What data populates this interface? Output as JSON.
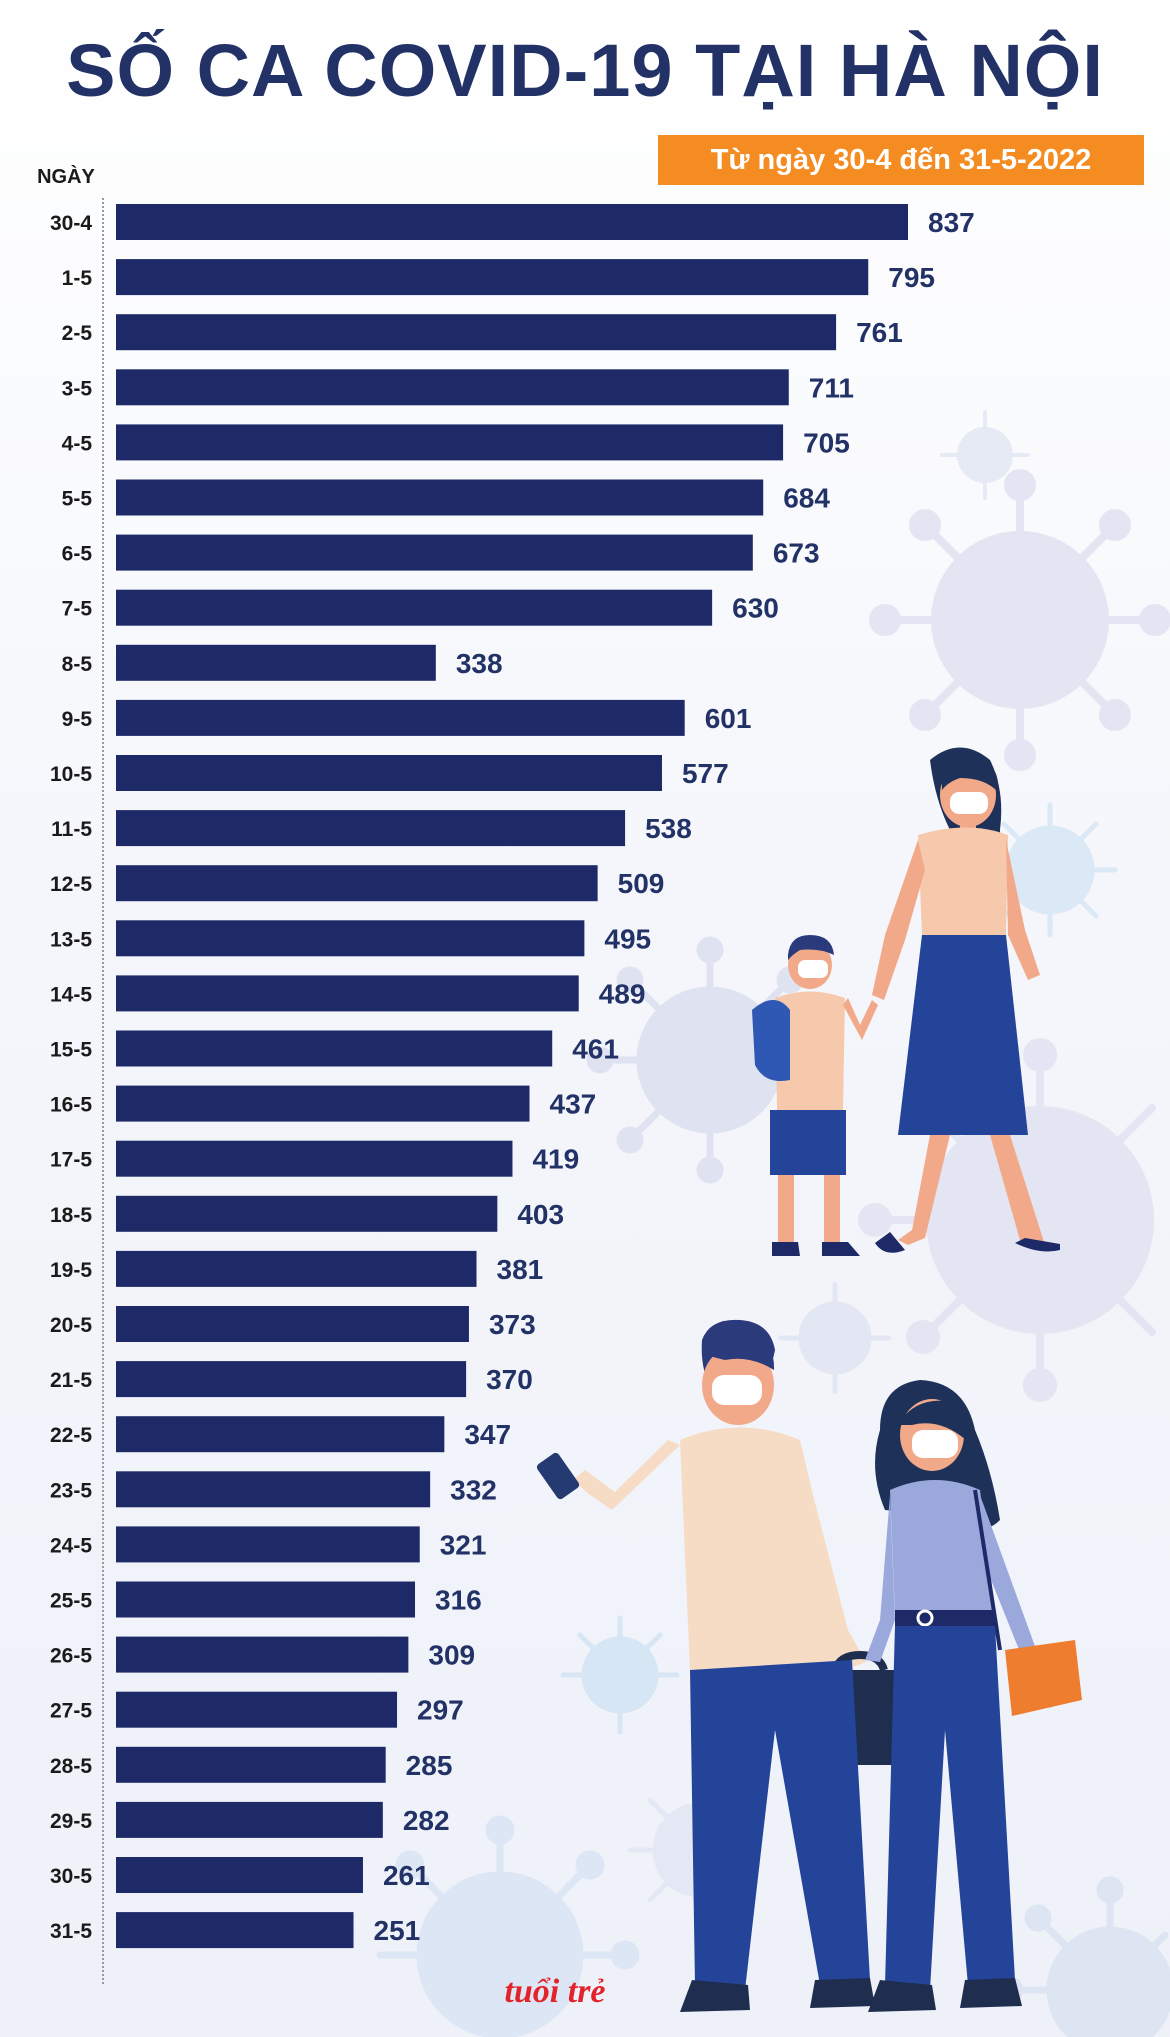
{
  "colors": {
    "title": "#233266",
    "bar": "#1e2a68",
    "value": "#233266",
    "label": "#1a1a1a",
    "subtitle_bg": "#f58c22",
    "brand": "#e3232b"
  },
  "header": {
    "title": "SỐ CA COVID-19 TẠI HÀ NỘI",
    "subtitle": "Từ ngày 30-4 đến 31-5-2022"
  },
  "brand": {
    "logo_text": "tuổi trẻ"
  },
  "chart_data": {
    "type": "bar",
    "orientation": "horizontal",
    "title": "SỐ CA COVID-19 TẠI HÀ NỘI",
    "subtitle": "Từ ngày 30-4 đến 31-5-2022",
    "ylabel": "NGÀY",
    "xlim": [
      0,
      837
    ],
    "grid": false,
    "data_labels": true,
    "categories": [
      "30-4",
      "1-5",
      "2-5",
      "3-5",
      "4-5",
      "5-5",
      "6-5",
      "7-5",
      "8-5",
      "9-5",
      "10-5",
      "11-5",
      "12-5",
      "13-5",
      "14-5",
      "15-5",
      "16-5",
      "17-5",
      "18-5",
      "19-5",
      "20-5",
      "21-5",
      "22-5",
      "23-5",
      "24-5",
      "25-5",
      "26-5",
      "27-5",
      "28-5",
      "29-5",
      "30-5",
      "31-5"
    ],
    "values": [
      837,
      795,
      761,
      711,
      705,
      684,
      673,
      630,
      338,
      601,
      577,
      538,
      509,
      495,
      489,
      461,
      437,
      419,
      403,
      381,
      373,
      370,
      347,
      332,
      321,
      316,
      309,
      297,
      285,
      282,
      261,
      251
    ]
  }
}
